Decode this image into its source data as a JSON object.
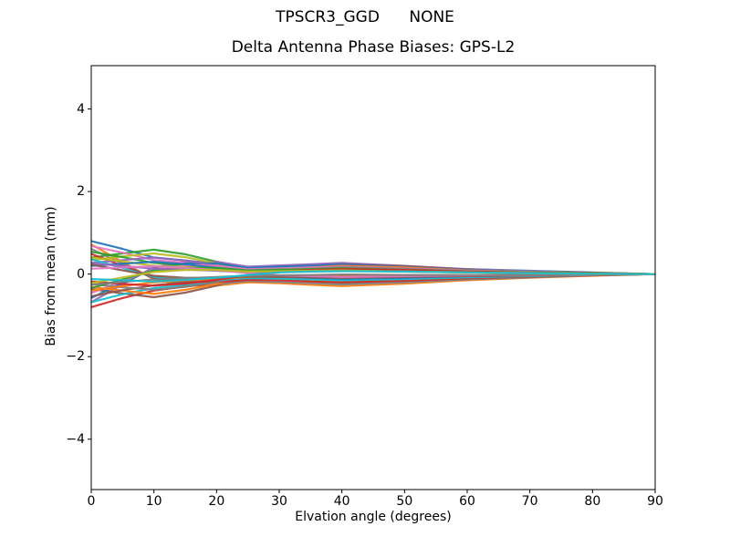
{
  "titles": {
    "suptitle": "TPSCR3_GGD      NONE",
    "axes_title": "Delta Antenna Phase Biases: GPS-L2"
  },
  "background_color": "#ffffff",
  "axis_color": "#000000",
  "chart_data": {
    "type": "line",
    "suptitle": "TPSCR3_GGD      NONE",
    "title": "Delta Antenna Phase Biases: GPS-L2",
    "xlabel": "Elvation angle (degrees)",
    "ylabel": "Bias from mean (mm)",
    "xlim": [
      0,
      90
    ],
    "ylim": [
      -5.22,
      5.05
    ],
    "x_ticks": [
      0,
      10,
      20,
      30,
      40,
      50,
      60,
      70,
      80,
      90
    ],
    "y_ticks": [
      4,
      2,
      0,
      -2,
      -4
    ],
    "grid": false,
    "legend": "none",
    "x": [
      0,
      5,
      10,
      15,
      20,
      25,
      30,
      35,
      40,
      50,
      60,
      70,
      80,
      90
    ],
    "palette": [
      "#1f77b4",
      "#ff7f0e",
      "#2ca02c",
      "#d62728",
      "#9467bd",
      "#8c564b",
      "#e377c2",
      "#7f7f7f",
      "#bcbd22",
      "#17becf"
    ],
    "series": [
      {
        "values": [
          0.8,
          0.61,
          0.4,
          0.33,
          0.25,
          0.13,
          0.18,
          0.22,
          0.25,
          0.19,
          0.12,
          0.08,
          0.04,
          0
        ]
      },
      {
        "values": [
          0.72,
          0.29,
          -0.13,
          -0.27,
          -0.28,
          -0.2,
          -0.22,
          -0.26,
          -0.29,
          -0.23,
          -0.15,
          -0.09,
          -0.04,
          0
        ]
      },
      {
        "values": [
          0.4,
          0.5,
          0.59,
          0.48,
          0.3,
          0.07,
          -0.1,
          -0.17,
          -0.22,
          -0.17,
          -0.1,
          -0.05,
          -0.02,
          0
        ]
      },
      {
        "values": [
          -0.8,
          -0.58,
          -0.4,
          -0.3,
          -0.23,
          -0.13,
          -0.1,
          -0.07,
          -0.04,
          -0.06,
          -0.07,
          -0.05,
          -0.02,
          0
        ]
      },
      {
        "values": [
          -0.68,
          -0.25,
          0.17,
          0.3,
          0.3,
          0.18,
          0.21,
          0.24,
          0.27,
          0.2,
          0.12,
          0.07,
          0.03,
          0
        ]
      },
      {
        "values": [
          -0.36,
          -0.47,
          -0.56,
          -0.45,
          -0.28,
          -0.05,
          0.11,
          0.19,
          0.23,
          0.19,
          0.11,
          0.06,
          0.03,
          0
        ]
      },
      {
        "values": [
          0.68,
          0.52,
          0.34,
          0.28,
          0.21,
          0.11,
          0.15,
          0.19,
          0.21,
          0.16,
          0.1,
          0.07,
          0.03,
          0
        ]
      },
      {
        "values": [
          0.61,
          0.25,
          -0.11,
          -0.23,
          -0.24,
          -0.17,
          -0.19,
          -0.22,
          -0.25,
          -0.2,
          -0.13,
          -0.08,
          -0.03,
          0
        ]
      },
      {
        "values": [
          0.34,
          0.43,
          0.5,
          0.41,
          0.26,
          0.06,
          -0.09,
          -0.14,
          -0.19,
          -0.14,
          -0.09,
          -0.04,
          -0.02,
          0
        ]
      },
      {
        "values": [
          -0.68,
          -0.49,
          -0.34,
          -0.26,
          -0.2,
          -0.11,
          -0.09,
          -0.06,
          -0.03,
          -0.05,
          -0.06,
          -0.04,
          -0.02,
          0
        ]
      },
      {
        "values": [
          -0.58,
          -0.21,
          0.14,
          0.26,
          0.26,
          0.15,
          0.18,
          0.2,
          0.23,
          0.17,
          0.1,
          0.06,
          0.03,
          0
        ]
      },
      {
        "values": [
          -0.31,
          -0.4,
          -0.48,
          -0.38,
          -0.24,
          -0.04,
          0.09,
          0.16,
          0.2,
          0.16,
          0.09,
          0.05,
          0.03,
          0
        ]
      },
      {
        "values": [
          0.54,
          0.41,
          0.27,
          0.22,
          0.17,
          0.09,
          0.12,
          0.15,
          0.17,
          0.13,
          0.08,
          0.05,
          0.03,
          0
        ]
      },
      {
        "values": [
          0.49,
          0.2,
          -0.09,
          -0.18,
          -0.19,
          -0.14,
          -0.15,
          -0.18,
          -0.2,
          -0.16,
          -0.1,
          -0.06,
          -0.03,
          0
        ]
      },
      {
        "values": [
          0.27,
          0.34,
          0.4,
          0.33,
          0.2,
          0.05,
          -0.07,
          -0.12,
          -0.15,
          -0.12,
          -0.07,
          -0.03,
          -0.01,
          0
        ]
      },
      {
        "values": [
          -0.54,
          -0.39,
          -0.27,
          -0.2,
          -0.16,
          -0.09,
          -0.07,
          -0.05,
          -0.03,
          -0.04,
          -0.05,
          -0.03,
          -0.01,
          0
        ]
      },
      {
        "values": [
          -0.46,
          -0.17,
          0.12,
          0.2,
          0.2,
          0.12,
          0.14,
          0.16,
          0.18,
          0.14,
          0.08,
          0.05,
          0.02,
          0
        ]
      },
      {
        "values": [
          -0.24,
          -0.32,
          -0.38,
          -0.31,
          -0.19,
          -0.03,
          0.07,
          0.13,
          0.16,
          0.13,
          0.07,
          0.04,
          0.02,
          0
        ]
      },
      {
        "values": [
          0.4,
          0.31,
          0.2,
          0.17,
          0.13,
          0.07,
          0.09,
          0.11,
          0.13,
          0.1,
          0.06,
          0.04,
          0.02,
          0
        ]
      },
      {
        "values": [
          0.36,
          0.15,
          -0.07,
          -0.14,
          -0.14,
          -0.1,
          -0.11,
          -0.13,
          -0.15,
          -0.12,
          -0.08,
          -0.05,
          -0.02,
          0
        ]
      },
      {
        "values": [
          0.2,
          0.25,
          0.3,
          0.24,
          0.15,
          0.04,
          -0.05,
          -0.09,
          -0.11,
          -0.09,
          -0.05,
          -0.03,
          -0.01,
          0
        ]
      },
      {
        "values": [
          -0.4,
          -0.29,
          -0.2,
          -0.15,
          -0.12,
          -0.07,
          -0.05,
          -0.04,
          -0.02,
          -0.03,
          -0.04,
          -0.03,
          -0.01,
          0
        ]
      },
      {
        "values": [
          -0.34,
          -0.13,
          0.09,
          0.15,
          0.15,
          0.09,
          0.11,
          0.12,
          0.14,
          0.1,
          0.06,
          0.04,
          0.02,
          0
        ]
      },
      {
        "values": [
          -0.18,
          -0.24,
          -0.28,
          -0.23,
          -0.14,
          -0.03,
          0.06,
          0.1,
          0.12,
          0.1,
          0.06,
          0.03,
          0.02,
          0
        ]
      },
      {
        "values": [
          0.26,
          0.2,
          0.13,
          0.11,
          0.08,
          0.04,
          0.06,
          0.07,
          0.08,
          0.06,
          0.04,
          0.03,
          0.01,
          0
        ]
      },
      {
        "values": [
          0.23,
          0.09,
          -0.04,
          -0.09,
          -0.09,
          -0.06,
          -0.07,
          -0.08,
          -0.09,
          -0.07,
          -0.05,
          -0.03,
          -0.01,
          0
        ]
      },
      {
        "values": [
          0.13,
          0.16,
          0.19,
          0.15,
          0.1,
          0.02,
          -0.03,
          -0.05,
          -0.07,
          -0.05,
          -0.03,
          -0.02,
          -0.01,
          0
        ]
      },
      {
        "values": [
          -0.26,
          -0.19,
          -0.13,
          -0.1,
          -0.07,
          -0.04,
          -0.03,
          -0.02,
          -0.01,
          -0.02,
          -0.02,
          -0.02,
          -0.01,
          0
        ]
      },
      {
        "values": [
          -0.22,
          -0.08,
          0.05,
          0.1,
          0.1,
          0.06,
          0.07,
          0.08,
          0.09,
          0.06,
          0.04,
          0.02,
          0.01,
          0
        ]
      },
      {
        "values": [
          -0.12,
          -0.15,
          -0.18,
          -0.14,
          -0.09,
          -0.02,
          0.04,
          0.06,
          0.07,
          0.06,
          0.04,
          0.02,
          0.01,
          0
        ]
      }
    ]
  }
}
